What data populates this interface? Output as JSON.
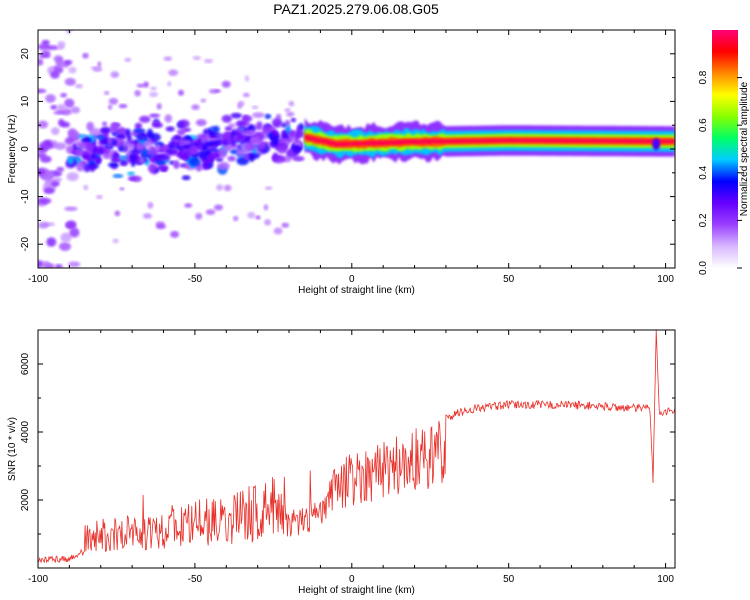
{
  "title": "PAZ1.2025.279.06.08.G05",
  "chart_data": [
    {
      "type": "heatmap",
      "name": "spectrogram",
      "xlabel": "Height of straight line (km)",
      "ylabel": "Frequency (Hz)",
      "xlim": [
        -100,
        103
      ],
      "ylim": [
        -25,
        25
      ],
      "xticks": [
        -100,
        -50,
        0,
        50,
        100
      ],
      "yticks": [
        -20,
        -10,
        0,
        10,
        20
      ],
      "colorbar": {
        "label": "Normalized spectral amplitude",
        "range": [
          0.0,
          1.0
        ],
        "ticks": [
          0.0,
          0.2,
          0.4,
          0.6,
          0.8
        ],
        "tick_labels": [
          "0.0",
          "0.2",
          "0.4",
          "0.6",
          "0.8"
        ],
        "colors": [
          "#ffffff",
          "#d8b8ff",
          "#9a40ff",
          "#6600ff",
          "#0000ff",
          "#00ccff",
          "#00ff66",
          "#88ff00",
          "#ffff00",
          "#ff8800",
          "#ff0000",
          "#ff0077"
        ]
      },
      "description_values": {
        "noisy_region_x": [
          -90,
          -15
        ],
        "noisy_region_y": [
          -8,
          8
        ],
        "trend_region": [
          {
            "x": -30,
            "y": 5
          },
          {
            "x": -15,
            "y": 2.5
          },
          {
            "x": -5,
            "y": 1
          },
          {
            "x": 20,
            "y": 1.5
          },
          {
            "x": 50,
            "y": 1.8
          },
          {
            "x": 100,
            "y": 1.6
          }
        ],
        "peak_band_x": [
          0,
          97
        ],
        "peak_band_y": 1.5
      }
    },
    {
      "type": "line",
      "name": "snr",
      "xlabel": "Height of straight line (km)",
      "ylabel": "SNR (10 * v/v)",
      "xlim": [
        -100,
        103
      ],
      "ylim": [
        0,
        7000
      ],
      "xticks": [
        -100,
        -50,
        0,
        50,
        100
      ],
      "yticks": [
        2000,
        4000,
        6000
      ],
      "color": "#e8302a",
      "series": [
        {
          "name": "SNR",
          "x": [
            -100,
            -90,
            -85,
            -80,
            -70,
            -60,
            -50,
            -40,
            -35,
            -30,
            -25,
            -20,
            -15,
            -10,
            -7,
            -5,
            -2,
            0,
            5,
            8,
            10,
            15,
            20,
            25,
            30,
            35,
            40,
            50,
            60,
            70,
            80,
            90,
            95,
            96,
            97,
            98,
            100,
            103
          ],
          "values": [
            200,
            300,
            700,
            800,
            900,
            1000,
            1100,
            1200,
            1300,
            1400,
            1500,
            1600,
            1800,
            2000,
            2500,
            3000,
            3200,
            3300,
            3500,
            3600,
            3700,
            3800,
            4000,
            4200,
            4400,
            4600,
            4700,
            4800,
            4800,
            4800,
            4750,
            4700,
            4700,
            2500,
            7000,
            4600,
            4600,
            4650
          ]
        }
      ]
    }
  ]
}
